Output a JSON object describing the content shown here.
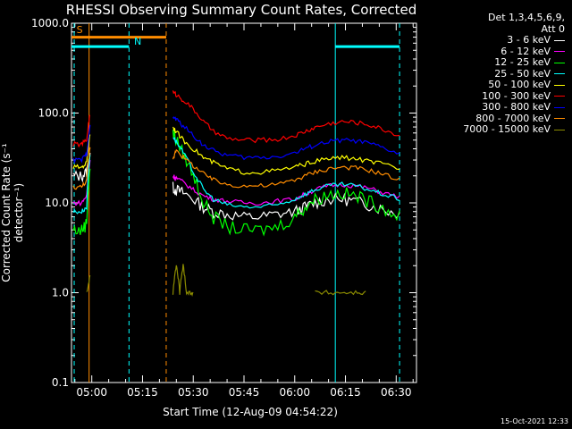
{
  "title": "RHESSI Observing Summary Count Rates, Corrected",
  "legend": {
    "header_line1": "Det 1,3,4,5,6,9,",
    "header_line2": "Att 0"
  },
  "timestamp": "15-Oct-2021 12:33",
  "chart_data": {
    "type": "line",
    "title": "RHESSI Observing Summary Count Rates, Corrected",
    "xlabel": "Start Time (12-Aug-09 04:54:22)",
    "ylabel": "Corrected Count Rate (s⁻¹ detector⁻¹)",
    "yscale": "log",
    "ylim": [
      0.1,
      1000
    ],
    "xlim_minutes": [
      -6,
      96
    ],
    "x_unit": "minutes after 05:00 UT",
    "x_ticks": [
      {
        "m": 0,
        "label": "05:00"
      },
      {
        "m": 15,
        "label": "05:15"
      },
      {
        "m": 30,
        "label": "05:30"
      },
      {
        "m": 45,
        "label": "05:45"
      },
      {
        "m": 60,
        "label": "06:00"
      },
      {
        "m": 75,
        "label": "06:15"
      },
      {
        "m": 90,
        "label": "06:30"
      }
    ],
    "y_ticks": [
      {
        "v": 0.1,
        "label": "0.1"
      },
      {
        "v": 1,
        "label": "1.0"
      },
      {
        "v": 10,
        "label": "10.0"
      },
      {
        "v": 100,
        "label": "100.0"
      },
      {
        "v": 1000,
        "label": "1000.0"
      }
    ],
    "series": [
      {
        "name": "3 - 6 keV",
        "color": "#ffffff",
        "x": [
          -5.5,
          -3,
          -1.5,
          -0.5,
          24,
          25,
          27,
          30,
          33,
          36,
          40,
          45,
          50,
          55,
          60,
          63,
          66,
          70,
          74,
          78,
          82,
          86,
          91
        ],
        "y": [
          20,
          20,
          22,
          35,
          15,
          14,
          13,
          11,
          9,
          8,
          7.5,
          7,
          7,
          7.5,
          8,
          9,
          10,
          11,
          11,
          10.5,
          9.5,
          8.5,
          7.5
        ]
      },
      {
        "name": "6 - 12 keV",
        "color": "#ff00ff",
        "x": [
          -5.5,
          -3,
          -1.5,
          -0.5,
          24,
          25,
          27,
          30,
          33,
          36,
          40,
          45,
          50,
          55,
          60,
          63,
          66,
          70,
          74,
          78,
          82,
          86,
          91
        ],
        "y": [
          10,
          10,
          12,
          30,
          20,
          19,
          17,
          14,
          12,
          11,
          10.5,
          10,
          10,
          10.5,
          11,
          12.5,
          14,
          15.5,
          16,
          15.5,
          14.5,
          13,
          11.5
        ]
      },
      {
        "name": "12 - 25 keV",
        "color": "#00ff00",
        "x": [
          -5.5,
          -3,
          -1.5,
          -0.5,
          24,
          25,
          27,
          30,
          33,
          36,
          40,
          45,
          50,
          55,
          60,
          63,
          66,
          70,
          74,
          78,
          82,
          86,
          91
        ],
        "y": [
          5,
          5,
          6,
          25,
          60,
          50,
          35,
          20,
          10,
          7,
          5.5,
          5,
          5,
          5.5,
          7,
          9,
          11,
          12.5,
          13,
          12,
          10.5,
          9,
          7
        ]
      },
      {
        "name": "25 - 50 keV",
        "color": "#00ffff",
        "x": [
          -5.5,
          -3,
          -1.5,
          -0.5,
          24,
          25,
          27,
          30,
          33,
          36,
          40,
          45,
          50,
          55,
          60,
          63,
          66,
          70,
          74,
          78,
          82,
          86,
          91
        ],
        "y": [
          8,
          8,
          9,
          35,
          55,
          48,
          36,
          22,
          14,
          11,
          9.5,
          9,
          9,
          9.5,
          11,
          12.5,
          14,
          15.5,
          16,
          15.5,
          14,
          12.5,
          11
        ]
      },
      {
        "name": "50 - 100 keV",
        "color": "#ffff00",
        "x": [
          -5.5,
          -3,
          -1.5,
          -0.5,
          24,
          25,
          27,
          30,
          33,
          36,
          40,
          45,
          50,
          55,
          60,
          63,
          66,
          70,
          74,
          78,
          82,
          86,
          91
        ],
        "y": [
          25,
          25,
          28,
          60,
          70,
          62,
          50,
          40,
          32,
          28,
          24,
          22,
          22,
          23,
          25,
          27,
          29,
          31,
          32,
          31,
          29,
          27,
          24
        ]
      },
      {
        "name": "100 - 300 keV",
        "color": "#ff0000",
        "x": [
          -5.5,
          -3,
          -1.5,
          -0.5,
          24,
          25,
          27,
          30,
          33,
          36,
          40,
          45,
          50,
          55,
          60,
          63,
          66,
          70,
          74,
          78,
          82,
          86,
          91
        ],
        "y": [
          45,
          45,
          50,
          100,
          170,
          160,
          140,
          110,
          80,
          62,
          52,
          50,
          50,
          51,
          56,
          62,
          69,
          76,
          80,
          79,
          74,
          66,
          56
        ]
      },
      {
        "name": "300 - 800 keV",
        "color": "#0000ff",
        "x": [
          -5.5,
          -3,
          -1.5,
          -0.5,
          24,
          25,
          27,
          30,
          33,
          36,
          40,
          45,
          50,
          55,
          60,
          63,
          66,
          70,
          74,
          78,
          82,
          86,
          91
        ],
        "y": [
          30,
          30,
          35,
          70,
          90,
          85,
          72,
          56,
          44,
          38,
          34,
          32,
          32,
          33,
          36,
          40,
          44,
          48,
          50,
          49,
          46,
          41,
          35
        ]
      },
      {
        "name": "800 - 7000 keV",
        "color": "#ff8c00",
        "x": [
          -5.5,
          -3,
          -1.5,
          -0.5,
          24,
          25,
          27,
          30,
          33,
          36,
          40,
          45,
          50,
          55,
          60,
          63,
          66,
          70,
          74,
          78,
          82,
          86,
          91
        ],
        "y": [
          15,
          15,
          18,
          40,
          30,
          40,
          32,
          26,
          21,
          18,
          16,
          15.5,
          15.5,
          16,
          18,
          20,
          22,
          24,
          25,
          24.5,
          23,
          21,
          18
        ]
      },
      {
        "name": "7000 - 15000 keV",
        "color": "#8b8b00",
        "x": [
          -1.5,
          -0.5,
          24,
          25,
          26,
          27,
          28,
          29,
          30,
          66,
          70,
          74,
          78,
          81
        ],
        "y": [
          1,
          1.5,
          1,
          2,
          1,
          2,
          1,
          1,
          1,
          1,
          1,
          1,
          1,
          1
        ]
      }
    ],
    "annotations": [
      {
        "text": "S",
        "x": -4.5,
        "y": 850,
        "color": "#ff8c00"
      },
      {
        "text": "N",
        "x": 12.5,
        "y": 630,
        "color": "#00ffff"
      }
    ],
    "saa_bar": {
      "x": [
        -6,
        22
      ],
      "y": 700,
      "color": "#ff8c00"
    },
    "night_bars": [
      {
        "x": [
          -6,
          11
        ],
        "y": 550,
        "color": "#00ffff"
      },
      {
        "x": [
          72,
          91
        ],
        "y": 550,
        "color": "#00ffff"
      }
    ],
    "vlines": [
      {
        "x": -5.2,
        "color": "#00ffff",
        "style": "dashed"
      },
      {
        "x": -0.8,
        "color": "#ff8c00",
        "style": "solid"
      },
      {
        "x": 11,
        "color": "#00ffff",
        "style": "dashed"
      },
      {
        "x": 22,
        "color": "#ff8c00",
        "style": "dashed"
      },
      {
        "x": 72,
        "color": "#00ffff",
        "style": "solid"
      },
      {
        "x": 91,
        "color": "#00ffff",
        "style": "dashed"
      }
    ]
  }
}
